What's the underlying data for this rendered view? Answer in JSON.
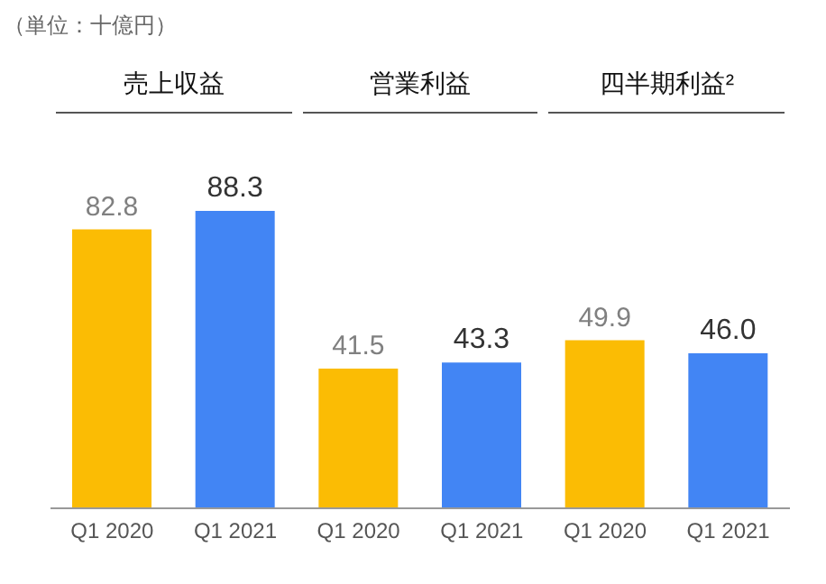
{
  "chart_data": {
    "type": "bar",
    "categories": [
      "Q1 2020",
      "Q1 2021",
      "Q1 2020",
      "Q1 2021",
      "Q1 2020",
      "Q1 2021"
    ],
    "values": [
      82.8,
      88.3,
      41.5,
      43.3,
      49.9,
      46.0
    ],
    "colors": [
      "#fbbc04",
      "#4285f4",
      "#fbbc04",
      "#4285f4",
      "#fbbc04",
      "#4285f4"
    ],
    "value_labels": [
      "82.8",
      "88.3",
      "41.5",
      "43.3",
      "49.9",
      "46.0"
    ],
    "annotations": [
      "（単位：十億円）",
      "売上収益",
      "営業利益",
      "四半期利益²"
    ],
    "grid": false,
    "legend": false
  }
}
